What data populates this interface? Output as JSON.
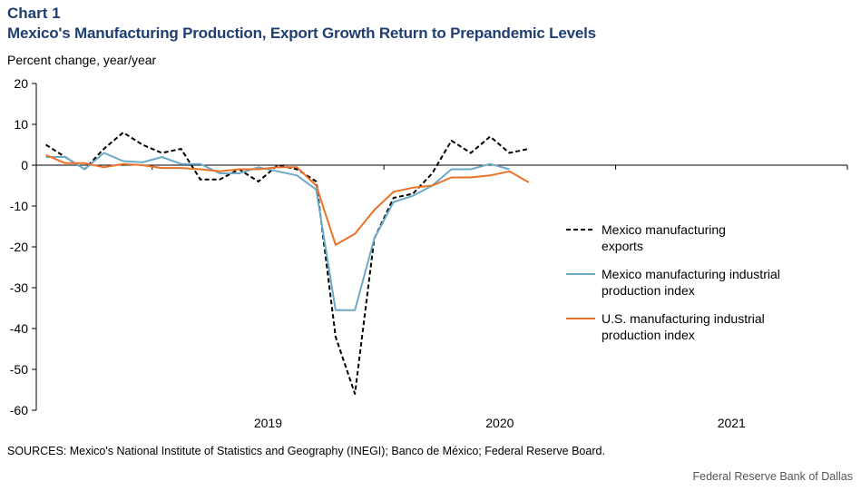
{
  "header": {
    "label": "Chart 1",
    "title": "Mexico's Manufacturing Production, Export Growth Return to Prepandemic Levels"
  },
  "footer": {
    "source": "SOURCES: Mexico's National Institute of Statistics and Geography (INEGI);  Banco de México; Federal Reserve Board.",
    "credit": "Federal Reserve Bank of Dallas"
  },
  "chart_data": {
    "type": "line",
    "ylabel": "Percent change, year/year",
    "ylim": [
      -60,
      20
    ],
    "yticks": [
      20,
      10,
      0,
      -10,
      -20,
      -30,
      -40,
      -50,
      -60
    ],
    "x_start": "2018-07",
    "x_end": "2021-12",
    "x_labels": [
      "2019",
      "2020",
      "2021"
    ],
    "x": [
      "2018-07",
      "2018-08",
      "2018-09",
      "2018-10",
      "2018-11",
      "2018-12",
      "2019-01",
      "2019-02",
      "2019-03",
      "2019-04",
      "2019-05",
      "2019-06",
      "2019-07",
      "2019-08",
      "2019-09",
      "2019-10",
      "2019-11",
      "2019-12",
      "2020-01",
      "2020-02",
      "2020-03",
      "2020-04",
      "2020-05",
      "2020-06",
      "2020-07",
      "2020-08",
      "2020-09",
      "2020-10",
      "2020-11",
      "2020-12",
      "2021-01",
      "2021-02",
      "2021-03"
    ],
    "series": [
      {
        "name": "Mexico manufacturing exports",
        "color": "#000000",
        "dash": true,
        "values": [
          5,
          2,
          -1,
          4,
          8,
          5,
          3,
          4,
          -3.5,
          -3.5,
          -1,
          -4,
          0,
          -1,
          -4,
          -42,
          -56,
          -18,
          -8,
          -7,
          -2,
          6,
          3,
          7,
          3,
          4,
          null,
          null,
          null,
          null,
          null,
          null,
          null
        ]
      },
      {
        "name": "Mexico manufacturing industrial production index",
        "color": "#6ba9c7",
        "dash": false,
        "values": [
          2,
          2,
          -1,
          3,
          1,
          0.7,
          2,
          0.3,
          0.3,
          -2,
          -2,
          -0.5,
          -1.5,
          -2.5,
          -6,
          -35.5,
          -35.5,
          -18,
          -9,
          -7.5,
          -5,
          -1,
          -1,
          0.3,
          -1,
          null,
          null,
          null,
          null,
          null,
          null,
          null,
          null
        ]
      },
      {
        "name": "U.S. manufacturing industrial production index",
        "color": "#ea7125",
        "dash": false,
        "values": [
          2.5,
          0.5,
          0.5,
          -0.5,
          0.3,
          0,
          -0.7,
          -0.7,
          -1,
          -1.5,
          -1,
          -1,
          -0.5,
          -0.5,
          -5,
          -19.5,
          -16.8,
          -11,
          -6.5,
          -5.5,
          -5,
          -3,
          -3,
          -2.5,
          -1.5,
          -4.2,
          null,
          null,
          null,
          null,
          null,
          null,
          null
        ]
      }
    ],
    "legend": [
      [
        "Mexico manufacturing",
        "exports"
      ],
      [
        "Mexico manufacturing industrial",
        "production index"
      ],
      [
        "U.S. manufacturing industrial",
        "production index"
      ]
    ]
  }
}
